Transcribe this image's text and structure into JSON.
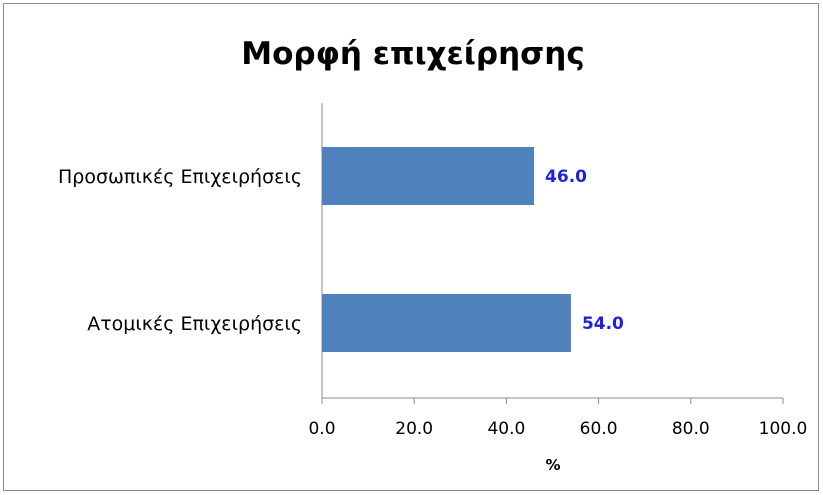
{
  "chart_data": {
    "type": "bar",
    "orientation": "horizontal",
    "title": "Μορφή επιχείρησης",
    "xlabel": "%",
    "ylabel": "",
    "categories": [
      "Προσωπικές Επιχειρήσεις",
      "Ατομικές Επιχειρήσεις"
    ],
    "values": [
      46.0,
      54.0
    ],
    "data_labels": [
      "46.0",
      "54.0"
    ],
    "xlim": [
      0,
      100
    ],
    "ticks": [
      "0.0",
      "20.0",
      "40.0",
      "60.0",
      "80.0",
      "100.0"
    ],
    "grid": false,
    "legend": "none",
    "bar_color": "#4F81BD",
    "data_label_color": "#1F1FE0"
  }
}
